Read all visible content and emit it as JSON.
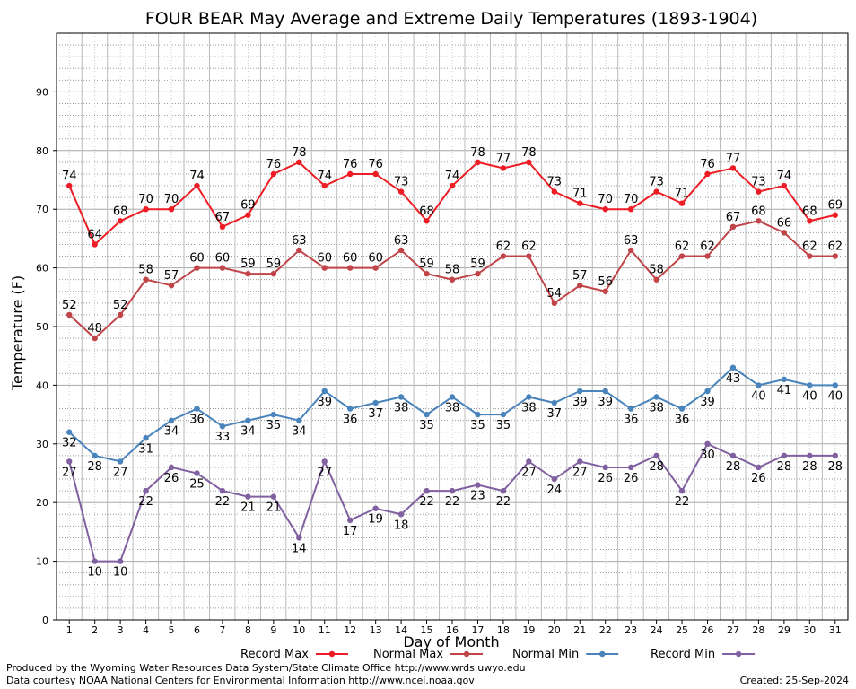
{
  "chart_data": {
    "type": "line",
    "title": "FOUR BEAR May Average and Extreme Daily Temperatures (1893-1904)",
    "xlabel": "Day of Month",
    "ylabel": "Temperature (F)",
    "x": [
      1,
      2,
      3,
      4,
      5,
      6,
      7,
      8,
      9,
      10,
      11,
      12,
      13,
      14,
      15,
      16,
      17,
      18,
      19,
      20,
      21,
      22,
      23,
      24,
      25,
      26,
      27,
      28,
      29,
      30,
      31
    ],
    "x_tick_labels": [
      "1",
      "2",
      "3",
      "4",
      "5",
      "6",
      "7",
      "8",
      "9",
      "10",
      "11",
      "12",
      "13",
      "14",
      "15",
      "16",
      "17",
      "18",
      "19",
      "20",
      "21",
      "22",
      "23",
      "24",
      "25",
      "26",
      "27",
      "28",
      "29",
      "30",
      "31"
    ],
    "ylim": [
      0,
      100
    ],
    "y_ticks": [
      0,
      10,
      20,
      30,
      40,
      50,
      60,
      70,
      80,
      90
    ],
    "y_tick_labels": [
      "0",
      "10",
      "20",
      "30",
      "40",
      "50",
      "60",
      "70",
      "80",
      "90"
    ],
    "grid": true,
    "legend_position": "bottom",
    "series": [
      {
        "name": "Record Max",
        "color": "#ee1c24",
        "label_position": "above",
        "values": [
          74,
          64,
          68,
          70,
          70,
          74,
          67,
          69,
          76,
          78,
          74,
          76,
          76,
          73,
          68,
          74,
          78,
          77,
          78,
          73,
          71,
          70,
          70,
          73,
          71,
          76,
          77,
          73,
          74,
          68,
          69
        ]
      },
      {
        "name": "Normal Max",
        "color": "#c04448",
        "label_position": "above",
        "values": [
          52,
          48,
          52,
          58,
          57,
          60,
          60,
          59,
          59,
          63,
          60,
          60,
          60,
          63,
          59,
          58,
          59,
          62,
          62,
          54,
          57,
          56,
          63,
          58,
          62,
          62,
          67,
          68,
          66,
          62,
          62
        ]
      },
      {
        "name": "Normal Min",
        "color": "#4a84bc",
        "label_position": "below",
        "values": [
          32,
          28,
          27,
          31,
          34,
          36,
          33,
          34,
          35,
          34,
          39,
          36,
          37,
          38,
          35,
          38,
          35,
          35,
          38,
          37,
          39,
          39,
          36,
          38,
          36,
          39,
          43,
          40,
          41,
          40,
          40
        ]
      },
      {
        "name": "Record Min",
        "color": "#8060a0",
        "label_position": "below",
        "values": [
          27,
          10,
          10,
          22,
          26,
          25,
          22,
          21,
          21,
          14,
          27,
          17,
          19,
          18,
          22,
          22,
          23,
          22,
          27,
          24,
          27,
          26,
          26,
          28,
          22,
          30,
          28,
          26,
          28,
          28,
          28
        ]
      }
    ]
  },
  "footer": {
    "line1": "Produced by the Wyoming Water Resources Data System/State Climate Office http://www.wrds.uwyo.edu",
    "line2": "Data courtesy NOAA National Centers for Environmental Information http://www.ncei.noaa.gov",
    "created": "Created:  25-Sep-2024"
  }
}
